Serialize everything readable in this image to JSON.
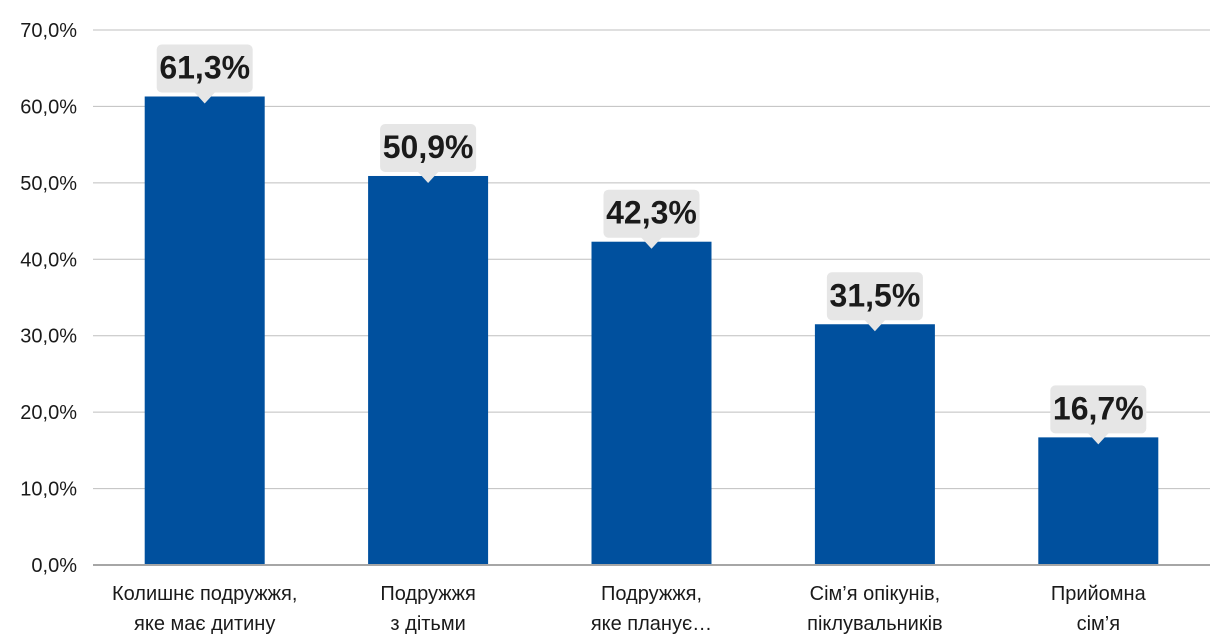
{
  "chart_data": {
    "type": "bar",
    "categories": [
      [
        "Колишнє подружжя,",
        "яке має дитину"
      ],
      [
        "Подружжя",
        "з дітьми"
      ],
      [
        "Подружжя,",
        "яке планує…"
      ],
      [
        "Сім’я опікунів,",
        "піклувальників"
      ],
      [
        "Прийомна",
        "сім’я"
      ]
    ],
    "values": [
      61.3,
      50.9,
      42.3,
      31.5,
      16.7
    ],
    "value_labels": [
      "61,3%",
      "50,9%",
      "42,3%",
      "31,5%",
      "16,7%"
    ],
    "ytick_labels": [
      "0,0%",
      "10,0%",
      "20,0%",
      "30,0%",
      "40,0%",
      "50,0%",
      "60,0%",
      "70,0%"
    ],
    "yticks": [
      0,
      10,
      20,
      30,
      40,
      50,
      60,
      70
    ],
    "ylim": [
      0,
      70
    ],
    "title": "",
    "xlabel": "",
    "ylabel": "",
    "grid": true,
    "legend": "none",
    "colors": {
      "bar": "#00509E",
      "label_bg": "#E6E6E6",
      "grid": "#BFBFBF",
      "axis": "#A6A6A6",
      "text": "#1A1A1A"
    }
  }
}
